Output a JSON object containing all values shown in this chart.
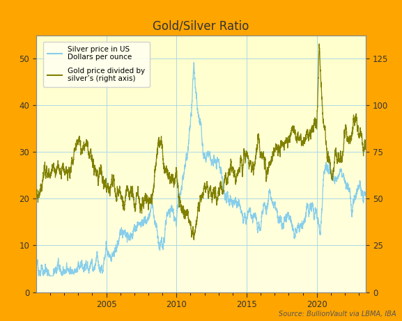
{
  "title": "Gold/Silver Ratio",
  "source_text": "Source: BullionVault via LBMA, IBA",
  "legend_silver": "Silver price in US\nDollars per ounce",
  "legend_ratio": "Gold price divided by\nsilver’s (right axis)",
  "silver_color": "#87CEEB",
  "ratio_color": "#808000",
  "ylim_left": [
    0,
    55
  ],
  "ylim_right": [
    0,
    137.5
  ],
  "yticks_left": [
    0,
    10,
    20,
    30,
    40,
    50
  ],
  "yticks_right": [
    0,
    25,
    50,
    75,
    100,
    125
  ],
  "bg_chart_color": "#FFFFE0",
  "bg_top_color": "#FFA500",
  "grid_color": "#ADD8E6",
  "title_fontsize": 12,
  "silver_keypoints": {
    "2000.0": 5.0,
    "2000.5": 4.8,
    "2001.0": 4.4,
    "2002.0": 4.6,
    "2003.0": 4.6,
    "2003.5": 5.0,
    "2004.0": 6.5,
    "2004.5": 7.2,
    "2005.0": 7.3,
    "2005.5": 8.0,
    "2006.0": 11.5,
    "2006.5": 11.0,
    "2007.0": 13.0,
    "2007.5": 13.5,
    "2008.0": 17.0,
    "2008.25": 20.5,
    "2008.75": 9.0,
    "2009.0": 11.0,
    "2009.5": 17.0,
    "2010.0": 17.5,
    "2010.5": 23.0,
    "2011.0": 35.0,
    "2011.25": 49.0,
    "2011.5": 38.0,
    "2012.0": 29.0,
    "2012.5": 27.0,
    "2013.0": 29.0,
    "2013.5": 20.0,
    "2014.0": 20.0,
    "2014.5": 19.0,
    "2015.0": 16.5,
    "2015.5": 14.5,
    "2016.0": 15.0,
    "2016.5": 19.5,
    "2017.0": 17.0,
    "2017.5": 16.5,
    "2018.0": 16.5,
    "2018.5": 14.5,
    "2019.0": 15.5,
    "2019.5": 17.5,
    "2020.0": 17.0,
    "2020.25": 12.0,
    "2020.5": 24.0,
    "2020.75": 26.0,
    "2021.0": 25.0,
    "2021.5": 26.0,
    "2022.0": 24.0,
    "2022.5": 19.0,
    "2023.0": 23.0,
    "2023.5": 23.5
  },
  "ratio_keypoints": {
    "2000.0": 55.0,
    "2000.5": 57.0,
    "2001.0": 62.0,
    "2001.5": 65.0,
    "2002.0": 68.0,
    "2002.5": 72.0,
    "2003.0": 79.0,
    "2003.5": 76.0,
    "2004.0": 66.0,
    "2004.5": 67.0,
    "2005.0": 60.0,
    "2005.5": 58.0,
    "2006.0": 52.0,
    "2006.5": 54.0,
    "2007.0": 51.0,
    "2007.5": 51.0,
    "2008.0": 51.0,
    "2008.25": 52.0,
    "2008.75": 83.0,
    "2009.0": 73.0,
    "2009.5": 64.0,
    "2010.0": 63.0,
    "2010.5": 47.0,
    "2011.0": 38.0,
    "2011.25": 32.0,
    "2011.5": 42.0,
    "2012.0": 52.0,
    "2012.5": 55.0,
    "2013.0": 53.0,
    "2013.5": 62.0,
    "2014.0": 65.0,
    "2014.5": 67.0,
    "2015.0": 74.0,
    "2015.5": 75.0,
    "2016.0": 82.0,
    "2016.5": 66.0,
    "2017.0": 72.0,
    "2017.5": 76.0,
    "2018.0": 80.0,
    "2018.5": 85.0,
    "2019.0": 83.0,
    "2019.5": 88.0,
    "2020.0": 90.0,
    "2020.17": 125.0,
    "2020.5": 97.0,
    "2020.75": 72.0,
    "2021.0": 68.0,
    "2021.5": 72.0,
    "2022.0": 79.0,
    "2022.5": 87.0,
    "2023.0": 80.0,
    "2023.5": 82.0
  }
}
